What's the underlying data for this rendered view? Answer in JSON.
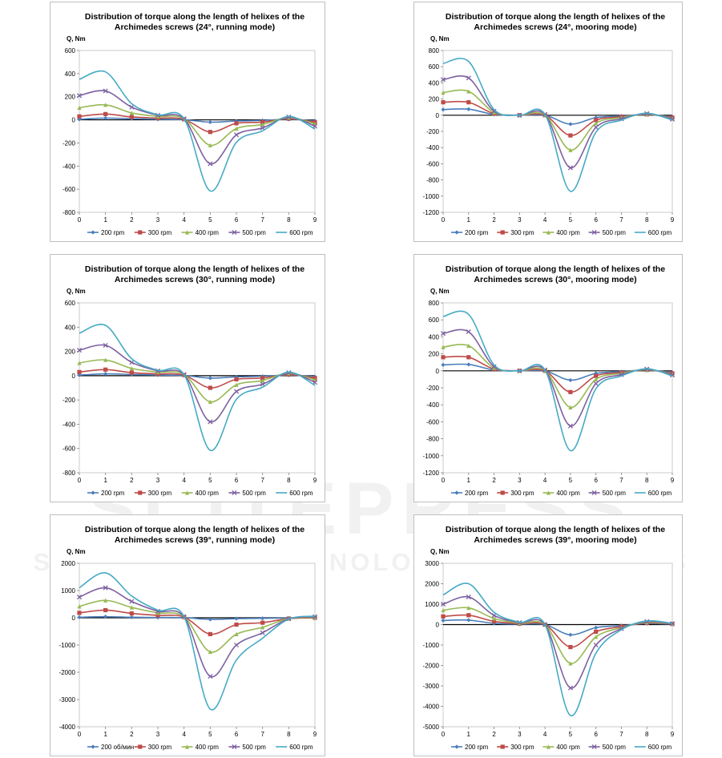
{
  "colors": {
    "200 rpm": "#4a7ebb",
    "300 rpm": "#be4b48",
    "400 rpm": "#98b954",
    "500 rpm": "#7d60a0",
    "600 rpm": "#46aac5"
  },
  "watermark": {
    "main": "SCITEPRESS",
    "sub": "SCIENCE AND TECHNOLOGY PUBLICATIONS"
  },
  "chart_data": [
    {
      "type": "line",
      "title": [
        "Distribution of torque along the length of helixes of the",
        "Archimedes screws  (24°, running mode)"
      ],
      "ylabel": "Q, Nm",
      "xlabel": "",
      "xlim": [
        0,
        9
      ],
      "ylim": [
        -800,
        600
      ],
      "xticks": [
        0,
        1,
        2,
        3,
        4,
        5,
        6,
        7,
        8,
        9
      ],
      "yticks": [
        -800,
        -600,
        -400,
        -200,
        0,
        200,
        400,
        600
      ],
      "ytick_labels": [
        "-800",
        "-600",
        "-400",
        "-200",
        "0",
        "200",
        "400",
        "600"
      ],
      "legend": "bottom",
      "grid": false,
      "x": [
        0,
        1,
        2,
        3,
        4,
        5,
        6,
        7,
        8,
        9
      ],
      "series": [
        {
          "name": "200 rpm",
          "values": [
            5,
            15,
            10,
            5,
            2,
            -20,
            -10,
            -5,
            5,
            -8
          ]
        },
        {
          "name": "300 rpm",
          "values": [
            30,
            50,
            25,
            15,
            5,
            -105,
            -30,
            -20,
            10,
            -20
          ]
        },
        {
          "name": "400 rpm",
          "values": [
            105,
            130,
            60,
            30,
            10,
            -220,
            -75,
            -40,
            20,
            -35
          ]
        },
        {
          "name": "500 rpm",
          "values": [
            210,
            250,
            110,
            40,
            10,
            -380,
            -130,
            -70,
            25,
            -55
          ]
        },
        {
          "name": "600 rpm",
          "values": [
            350,
            415,
            140,
            45,
            10,
            -615,
            -195,
            -95,
            30,
            -80
          ]
        }
      ]
    },
    {
      "type": "line",
      "title": [
        "Distribution of torque along the length of helixes of the",
        "Archimedes screws  (24°, mooring mode)"
      ],
      "ylabel": "Q, Nm",
      "xlabel": "",
      "xlim": [
        0,
        9
      ],
      "ylim": [
        -1200,
        800
      ],
      "xticks": [
        0,
        1,
        2,
        3,
        4,
        5,
        6,
        7,
        8,
        9
      ],
      "yticks": [
        -1200,
        -1000,
        -800,
        -600,
        -400,
        -200,
        0,
        200,
        400,
        600,
        800
      ],
      "ytick_labels": [
        "-1200",
        "-1000",
        "-800",
        "-600",
        "-400",
        "-200",
        "0",
        "200",
        "400",
        "600",
        "800"
      ],
      "legend": "bottom",
      "grid": false,
      "x": [
        0,
        1,
        2,
        3,
        4,
        5,
        6,
        7,
        8,
        9
      ],
      "series": [
        {
          "name": "200 rpm",
          "values": [
            70,
            75,
            10,
            0,
            0,
            -110,
            -30,
            -10,
            10,
            -20
          ]
        },
        {
          "name": "300 rpm",
          "values": [
            160,
            160,
            20,
            0,
            0,
            -250,
            -60,
            -20,
            10,
            -30
          ]
        },
        {
          "name": "400 rpm",
          "values": [
            280,
            295,
            35,
            0,
            5,
            -430,
            -100,
            -30,
            15,
            -40
          ]
        },
        {
          "name": "500 rpm",
          "values": [
            440,
            460,
            50,
            0,
            10,
            -650,
            -150,
            -45,
            20,
            -50
          ]
        },
        {
          "name": "600 rpm",
          "values": [
            640,
            665,
            70,
            0,
            10,
            -940,
            -210,
            -60,
            25,
            -60
          ]
        }
      ]
    },
    {
      "type": "line",
      "title": [
        "Distribution of torque along the length of helixes of the",
        "Archimedes screws  (30°, running mode)"
      ],
      "ylabel": "Q, Nm",
      "xlabel": "",
      "xlim": [
        0,
        9
      ],
      "ylim": [
        -800,
        600
      ],
      "xticks": [
        0,
        1,
        2,
        3,
        4,
        5,
        6,
        7,
        8,
        9
      ],
      "yticks": [
        -800,
        -600,
        -400,
        -200,
        0,
        200,
        400,
        600
      ],
      "ytick_labels": [
        "-800",
        "-600",
        "-400",
        "-200",
        "0",
        "200",
        "400",
        "600"
      ],
      "legend": "bottom",
      "grid": false,
      "x": [
        0,
        1,
        2,
        3,
        4,
        5,
        6,
        7,
        8,
        9
      ],
      "series": [
        {
          "name": "200 rpm",
          "values": [
            5,
            15,
            10,
            5,
            2,
            -20,
            -10,
            -5,
            5,
            -8
          ]
        },
        {
          "name": "300 rpm",
          "values": [
            30,
            50,
            25,
            15,
            5,
            -100,
            -30,
            -20,
            10,
            -20
          ]
        },
        {
          "name": "400 rpm",
          "values": [
            105,
            130,
            60,
            30,
            10,
            -215,
            -75,
            -40,
            20,
            -35
          ]
        },
        {
          "name": "500 rpm",
          "values": [
            210,
            250,
            110,
            40,
            10,
            -380,
            -130,
            -70,
            25,
            -55
          ]
        },
        {
          "name": "600 rpm",
          "values": [
            350,
            415,
            140,
            45,
            10,
            -615,
            -195,
            -95,
            30,
            -80
          ]
        }
      ]
    },
    {
      "type": "line",
      "title": [
        "Distribution of torque along the length of helixes of the",
        "Archimedes screws  (30°, mooring mode)"
      ],
      "ylabel": "Q, Nm",
      "xlabel": "",
      "xlim": [
        0,
        9
      ],
      "ylim": [
        -1200,
        800
      ],
      "xticks": [
        0,
        1,
        2,
        3,
        4,
        5,
        6,
        7,
        8,
        9
      ],
      "yticks": [
        -1200,
        -1000,
        -800,
        -600,
        -400,
        -200,
        0,
        200,
        400,
        600,
        800
      ],
      "ytick_labels": [
        "-1200",
        "-1000",
        "-800",
        "-600",
        "-400",
        "-200",
        "0",
        "200",
        "400",
        "600",
        "800"
      ],
      "legend": "bottom",
      "grid": false,
      "x": [
        0,
        1,
        2,
        3,
        4,
        5,
        6,
        7,
        8,
        9
      ],
      "series": [
        {
          "name": "200 rpm",
          "values": [
            70,
            75,
            10,
            0,
            0,
            -110,
            -30,
            -10,
            10,
            -20
          ]
        },
        {
          "name": "300 rpm",
          "values": [
            160,
            160,
            20,
            0,
            0,
            -250,
            -60,
            -20,
            10,
            -30
          ]
        },
        {
          "name": "400 rpm",
          "values": [
            280,
            295,
            35,
            0,
            5,
            -430,
            -100,
            -30,
            15,
            -40
          ]
        },
        {
          "name": "500 rpm",
          "values": [
            440,
            460,
            50,
            0,
            10,
            -650,
            -150,
            -45,
            20,
            -50
          ]
        },
        {
          "name": "600 rpm",
          "values": [
            640,
            665,
            70,
            0,
            10,
            -940,
            -210,
            -60,
            25,
            -60
          ]
        }
      ]
    },
    {
      "type": "line",
      "title": [
        "Distribution of torque along the length of helixes of the",
        "Archimedes screws  (39°, running mode)"
      ],
      "ylabel": "Q, Nm",
      "xlabel": "",
      "xlim": [
        0,
        9
      ],
      "ylim": [
        -4000,
        2000
      ],
      "xticks": [
        0,
        1,
        2,
        3,
        4,
        5,
        6,
        7,
        8,
        9
      ],
      "yticks": [
        -4000,
        -3000,
        -2000,
        -1000,
        0,
        1000,
        2000
      ],
      "ytick_labels": [
        "-4000",
        "-3000",
        "-2000",
        "-1000",
        "0",
        "1000",
        "2000"
      ],
      "legend": "bottom",
      "grid": false,
      "x": [
        0,
        1,
        2,
        3,
        4,
        5,
        6,
        7,
        8,
        9
      ],
      "series": [
        {
          "name": "200 об/мин",
          "values": [
            20,
            40,
            20,
            10,
            5,
            -60,
            -30,
            -20,
            -10,
            0
          ]
        },
        {
          "name": "300 rpm",
          "values": [
            180,
            280,
            160,
            90,
            30,
            -600,
            -250,
            -180,
            -30,
            0
          ]
        },
        {
          "name": "400 rpm",
          "values": [
            420,
            640,
            380,
            180,
            40,
            -1250,
            -600,
            -350,
            -30,
            20
          ]
        },
        {
          "name": "500 rpm",
          "values": [
            760,
            1100,
            600,
            240,
            40,
            -2150,
            -1000,
            -550,
            -40,
            40
          ]
        },
        {
          "name": "600 rpm",
          "values": [
            1100,
            1650,
            800,
            280,
            40,
            -3350,
            -1550,
            -750,
            -50,
            60
          ]
        }
      ]
    },
    {
      "type": "line",
      "title": [
        "Distribution of torque along the length of helixes of the",
        "Archimedes screws  (39°, mooring mode)"
      ],
      "ylabel": "Q, Nm",
      "xlabel": "",
      "xlim": [
        0,
        9
      ],
      "ylim": [
        -5000,
        3000
      ],
      "xticks": [
        0,
        1,
        2,
        3,
        4,
        5,
        6,
        7,
        8,
        9
      ],
      "yticks": [
        -5000,
        -4000,
        -3000,
        -2000,
        -1000,
        0,
        1000,
        2000,
        3000
      ],
      "ytick_labels": [
        "-5000",
        "-4000",
        "-3000",
        "-2000",
        "-1000",
        "0",
        "1000",
        "2000",
        "3000"
      ],
      "legend": "bottom",
      "grid": false,
      "x": [
        0,
        1,
        2,
        3,
        4,
        5,
        6,
        7,
        8,
        9
      ],
      "series": [
        {
          "name": "200 rpm",
          "values": [
            200,
            220,
            60,
            20,
            0,
            -500,
            -150,
            -50,
            50,
            20
          ]
        },
        {
          "name": "300 rpm",
          "values": [
            400,
            460,
            160,
            40,
            0,
            -1100,
            -350,
            -100,
            80,
            30
          ]
        },
        {
          "name": "400 rpm",
          "values": [
            700,
            820,
            300,
            70,
            0,
            -1900,
            -600,
            -150,
            120,
            40
          ]
        },
        {
          "name": "500 rpm",
          "values": [
            1000,
            1350,
            450,
            100,
            0,
            -3100,
            -1000,
            -200,
            150,
            50
          ]
        },
        {
          "name": "600 rpm",
          "values": [
            1450,
            2000,
            600,
            120,
            0,
            -4450,
            -1400,
            -250,
            180,
            60
          ]
        }
      ]
    }
  ]
}
